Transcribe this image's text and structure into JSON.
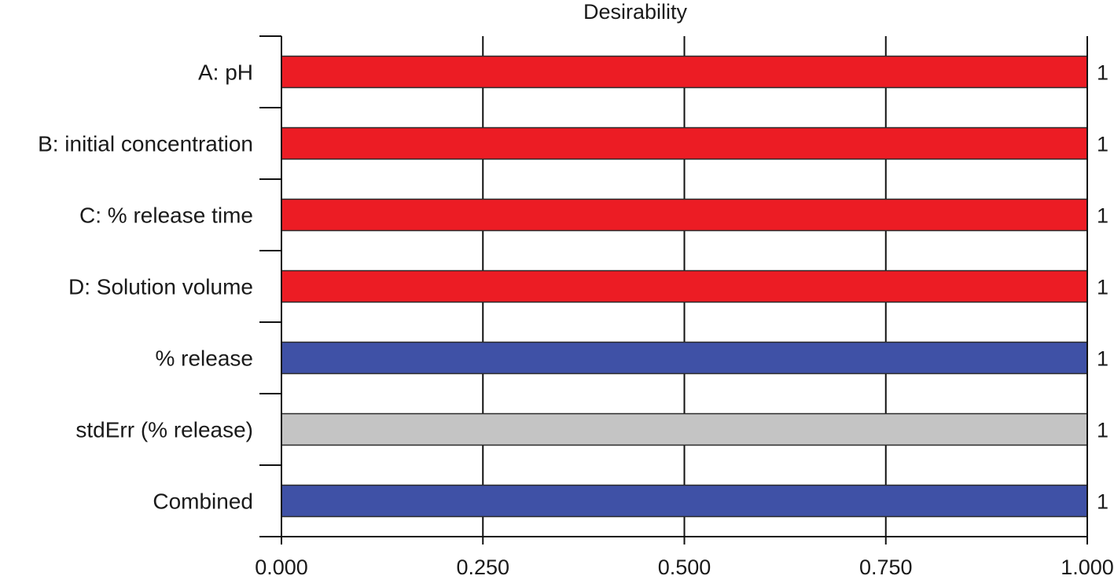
{
  "chart_data": {
    "type": "bar",
    "orientation": "horizontal",
    "title": "Desirability",
    "xlim": [
      0,
      1
    ],
    "x_ticks": [
      "0.000",
      "0.250",
      "0.500",
      "0.750",
      "1.000"
    ],
    "grid": "vertical",
    "categories": [
      "A: pH",
      "B: initial concentration",
      "C: % release time",
      "D: Solution volume",
      "% release",
      "stdErr (% release)",
      "Combined"
    ],
    "values": [
      1,
      1,
      1,
      1,
      1,
      1,
      1
    ],
    "value_labels": [
      "1",
      "1",
      "1",
      "1",
      "1",
      "1",
      "1"
    ],
    "bar_colors": [
      "#ec1c24",
      "#ec1c24",
      "#ec1c24",
      "#ec1c24",
      "#3f51a6",
      "#c4c4c4",
      "#3f51a6"
    ]
  }
}
